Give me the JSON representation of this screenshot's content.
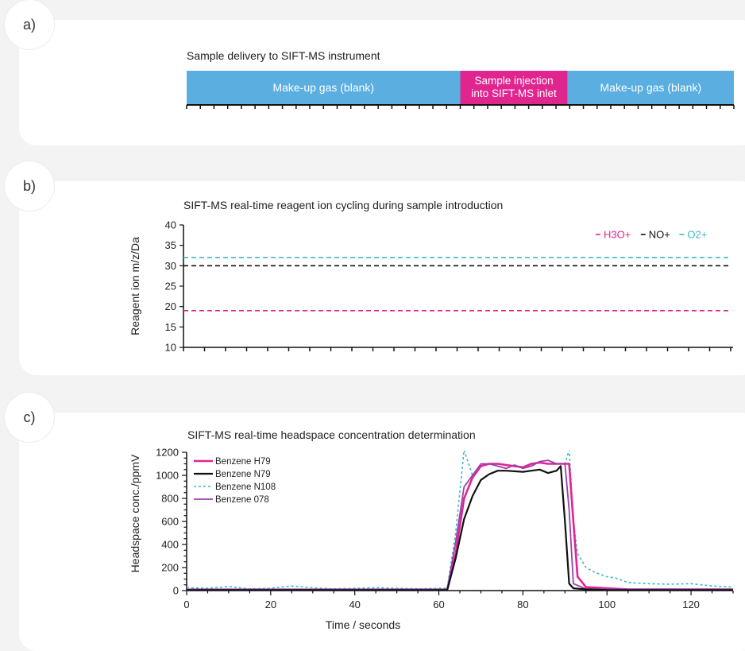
{
  "panel_labels": [
    "a)",
    "b)",
    "c)"
  ],
  "chart_data": [
    {
      "type": "timeline",
      "title": "Sample delivery to SIFT-MS instrument",
      "x_range": [
        0,
        130
      ],
      "segments": [
        {
          "label": "Make-up gas (blank)",
          "start": 0,
          "end": 65,
          "color": "#5aaee0"
        },
        {
          "label": "Sample injection into SIFT-MS inlet",
          "label_lines": [
            "Sample injection",
            "into SIFT-MS inlet"
          ],
          "start": 65,
          "end": 90.5,
          "color": "#e0258f"
        },
        {
          "label": "Make-up gas (blank)",
          "start": 90.5,
          "end": 130,
          "color": "#5aaee0"
        }
      ],
      "tick_count": 40
    },
    {
      "type": "line",
      "title": "SIFT-MS real-time reagent ion cycling during sample introduction",
      "ylabel": "Reagent ion m/z/Da",
      "ylim": [
        10,
        40
      ],
      "yticks": [
        10,
        15,
        20,
        25,
        30,
        35,
        40
      ],
      "xlim": [
        0,
        130
      ],
      "legend": [
        {
          "name": "H3O+",
          "color": "#e0258f"
        },
        {
          "name": "NO+",
          "color": "#111111"
        },
        {
          "name": "O2+",
          "color": "#3fb7c4"
        }
      ],
      "series": [
        {
          "name": "H3O+",
          "value": 19,
          "color": "#e0258f",
          "dash": "6,4"
        },
        {
          "name": "NO+",
          "value": 30,
          "color": "#111111",
          "dash": "6,4"
        },
        {
          "name": "O2+",
          "value": 32,
          "color": "#3fb7c4",
          "dash": "6,4"
        }
      ]
    },
    {
      "type": "line",
      "title": "SIFT-MS real-time headspace concentration determination",
      "xlabel": "Time / seconds",
      "ylabel": "Headspace conc./ppmV",
      "xlim": [
        0,
        130
      ],
      "ylim": [
        0,
        1200
      ],
      "xticks": [
        0,
        20,
        40,
        60,
        80,
        100,
        120
      ],
      "yticks": [
        0,
        200,
        400,
        600,
        800,
        1000,
        1200
      ],
      "series": [
        {
          "name": "Benzene H79",
          "color": "#e0258f",
          "width": 2.6,
          "dash": "",
          "x": [
            0,
            5,
            10,
            15,
            20,
            25,
            30,
            35,
            40,
            45,
            50,
            55,
            60,
            62,
            64,
            66,
            68,
            70,
            72,
            74,
            76,
            78,
            80,
            82,
            84,
            86,
            88,
            90,
            91,
            92,
            93,
            95,
            100,
            105,
            110,
            115,
            120,
            125,
            130
          ],
          "y": [
            8,
            8,
            8,
            8,
            8,
            8,
            8,
            8,
            8,
            8,
            8,
            8,
            8,
            8,
            320,
            800,
            980,
            1080,
            1100,
            1100,
            1090,
            1080,
            1070,
            1100,
            1110,
            1100,
            1100,
            1100,
            1100,
            600,
            120,
            30,
            20,
            10,
            10,
            10,
            10,
            10,
            10
          ]
        },
        {
          "name": "Benzene N79",
          "color": "#111111",
          "width": 2.2,
          "dash": "",
          "x": [
            0,
            5,
            10,
            15,
            20,
            25,
            30,
            35,
            40,
            45,
            50,
            55,
            60,
            62,
            64,
            66,
            68,
            70,
            72,
            74,
            76,
            78,
            80,
            82,
            84,
            86,
            88,
            89,
            90,
            91,
            92,
            95,
            100,
            105,
            110,
            115,
            120,
            125,
            130
          ],
          "y": [
            5,
            5,
            5,
            5,
            5,
            5,
            5,
            5,
            5,
            5,
            5,
            5,
            5,
            5,
            280,
            620,
            820,
            960,
            1010,
            1040,
            1040,
            1035,
            1030,
            1040,
            1050,
            1020,
            1040,
            1080,
            600,
            60,
            20,
            10,
            5,
            5,
            5,
            5,
            5,
            5,
            5
          ]
        },
        {
          "name": "Benzene N108",
          "color": "#3fb7c4",
          "width": 1.6,
          "dash": "3,3",
          "x": [
            0,
            5,
            10,
            15,
            20,
            25,
            30,
            35,
            40,
            45,
            50,
            55,
            60,
            62,
            64,
            66,
            68,
            70,
            72,
            74,
            76,
            78,
            80,
            82,
            84,
            86,
            88,
            90,
            91,
            92,
            93,
            95,
            97,
            100,
            102,
            105,
            110,
            115,
            120,
            125,
            130
          ],
          "y": [
            25,
            20,
            35,
            15,
            20,
            40,
            25,
            15,
            20,
            25,
            20,
            15,
            20,
            20,
            500,
            1220,
            1000,
            1080,
            1100,
            1100,
            1090,
            1080,
            1070,
            1100,
            1110,
            1100,
            1100,
            1100,
            1220,
            600,
            320,
            200,
            160,
            120,
            110,
            70,
            60,
            55,
            60,
            40,
            30
          ]
        },
        {
          "name": "Benzene 078",
          "color": "#9b3fb0",
          "width": 1.8,
          "dash": "",
          "x": [
            0,
            5,
            10,
            15,
            20,
            25,
            30,
            35,
            40,
            45,
            50,
            55,
            60,
            62,
            64,
            66,
            68,
            70,
            72,
            74,
            76,
            78,
            80,
            82,
            84,
            86,
            88,
            90,
            91,
            92,
            95,
            100,
            105,
            110,
            115,
            120,
            125,
            130
          ],
          "y": [
            12,
            12,
            12,
            12,
            12,
            12,
            12,
            12,
            12,
            12,
            12,
            12,
            12,
            12,
            420,
            900,
            1000,
            1100,
            1100,
            1080,
            1060,
            1090,
            1060,
            1080,
            1120,
            1130,
            1100,
            1100,
            700,
            60,
            15,
            12,
            12,
            12,
            12,
            12,
            12,
            12
          ]
        }
      ]
    }
  ]
}
